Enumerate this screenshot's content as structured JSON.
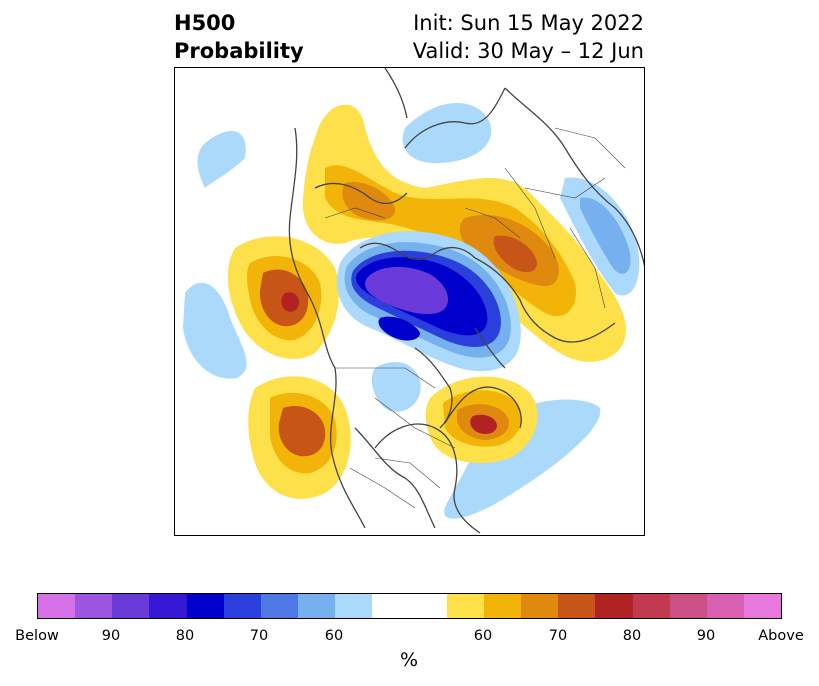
{
  "header": {
    "title_line1": "H500",
    "title_line2": "Probability",
    "init_label": "Init: Sun 15 May 2022",
    "valid_label": "Valid: 30 May – 12 Jun"
  },
  "colorbar": {
    "colors": [
      "#d670e6",
      "#9b55e0",
      "#6a3ad9",
      "#3617d4",
      "#0000cc",
      "#2a3fdb",
      "#4f78e4",
      "#77b0ef",
      "#aad9fb",
      "#ffffff",
      "#ffffff",
      "#fde04a",
      "#f3b40a",
      "#e0890f",
      "#c75518",
      "#b12222",
      "#c23a50",
      "#cc4f85",
      "#d85fb2",
      "#e878dc"
    ],
    "tick_labels": [
      "Below",
      "90",
      "80",
      "70",
      "60",
      "60",
      "70",
      "80",
      "90",
      "Above"
    ],
    "unit_label": "%"
  },
  "map": {
    "projection": "polar-stereographic",
    "region": "Northern Hemisphere",
    "variable": "500 hPa height anomaly probability",
    "coastline_color": "#444444"
  }
}
